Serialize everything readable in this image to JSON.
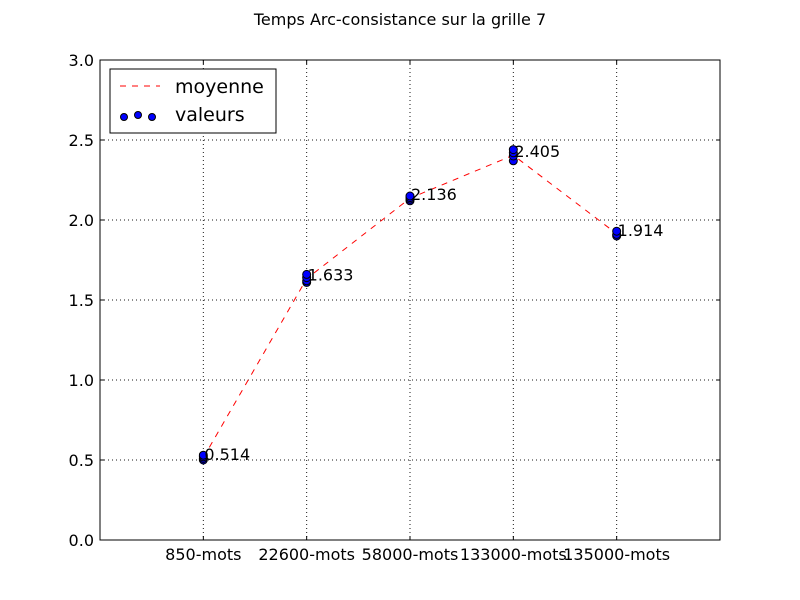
{
  "chart_data": {
    "type": "line",
    "title": "Temps Arc-consistance sur la grille 7",
    "xlabel": "",
    "ylabel": "",
    "categories": [
      "850-mots",
      "22600-mots",
      "58000-mots",
      "133000-mots",
      "135000-mots"
    ],
    "ylim": [
      0.0,
      3.0
    ],
    "yticks": [
      0.0,
      0.5,
      1.0,
      1.5,
      2.0,
      2.5,
      3.0
    ],
    "ytick_labels": [
      "0.0",
      "0.5",
      "1.0",
      "1.5",
      "2.0",
      "2.5",
      "3.0"
    ],
    "grid": true,
    "legend_position": "top-left",
    "series": [
      {
        "name": "moyenne",
        "style": "dashed-line",
        "color": "#ff0000",
        "values": [
          0.514,
          1.633,
          2.136,
          2.405,
          1.914
        ]
      },
      {
        "name": "valeurs",
        "style": "scatter",
        "color": "#0000ff",
        "points": [
          {
            "category": 0,
            "values": [
              0.5,
              0.51,
              0.52,
              0.53
            ]
          },
          {
            "category": 1,
            "values": [
              1.61,
              1.62,
              1.64,
              1.66
            ]
          },
          {
            "category": 2,
            "values": [
              2.12,
              2.13,
              2.14,
              2.15
            ]
          },
          {
            "category": 3,
            "values": [
              2.37,
              2.4,
              2.42,
              2.44
            ]
          },
          {
            "category": 4,
            "values": [
              1.9,
              1.91,
              1.93
            ]
          }
        ]
      }
    ],
    "data_labels": [
      "0.514",
      "1.633",
      "2.136",
      "2.405",
      "1.914"
    ]
  }
}
